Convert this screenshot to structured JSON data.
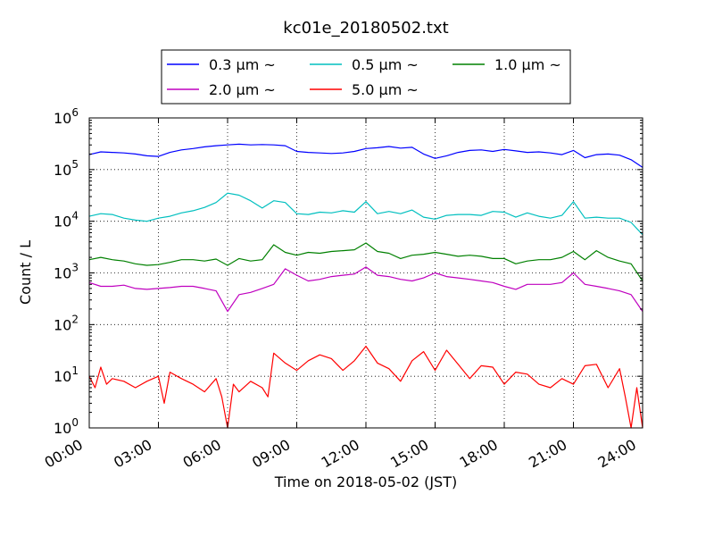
{
  "chart_data": {
    "type": "line",
    "title": "kc01e_20180502.txt",
    "xlabel": "Time on 2018-05-02 (JST)",
    "ylabel": "Count / L",
    "x_unit": "hours",
    "xlim": [
      0,
      24
    ],
    "ylim": [
      1,
      1000000
    ],
    "yscale": "log",
    "grid": true,
    "legend_position": "top-center",
    "x_ticks": [
      {
        "value": 0,
        "label": "00:00"
      },
      {
        "value": 3,
        "label": "03:00"
      },
      {
        "value": 6,
        "label": "06:00"
      },
      {
        "value": 9,
        "label": "09:00"
      },
      {
        "value": 12,
        "label": "12:00"
      },
      {
        "value": 15,
        "label": "15:00"
      },
      {
        "value": 18,
        "label": "18:00"
      },
      {
        "value": 21,
        "label": "21:00"
      },
      {
        "value": 24,
        "label": "24:00"
      }
    ],
    "y_ticks": [
      {
        "value": 1,
        "base": "10",
        "exp": "0"
      },
      {
        "value": 10,
        "base": "10",
        "exp": "1"
      },
      {
        "value": 100,
        "base": "10",
        "exp": "2"
      },
      {
        "value": 1000,
        "base": "10",
        "exp": "3"
      },
      {
        "value": 10000,
        "base": "10",
        "exp": "4"
      },
      {
        "value": 100000,
        "base": "10",
        "exp": "5"
      },
      {
        "value": 1000000,
        "base": "10",
        "exp": "6"
      }
    ],
    "series": [
      {
        "name": "0.3 μm ~",
        "color": "#0000ff",
        "x": [
          0,
          0.5,
          1,
          1.5,
          2,
          2.5,
          3,
          3.5,
          4,
          4.5,
          5,
          5.5,
          6,
          6.5,
          7,
          7.5,
          8,
          8.5,
          9,
          9.5,
          10,
          10.5,
          11,
          11.5,
          12,
          12.5,
          13,
          13.5,
          14,
          14.5,
          15,
          15.5,
          16,
          16.5,
          17,
          17.5,
          18,
          18.5,
          19,
          19.5,
          20,
          20.5,
          21,
          21.5,
          22,
          22.5,
          23,
          23.5,
          24
        ],
        "y": [
          195000,
          220000,
          215000,
          210000,
          200000,
          185000,
          180000,
          215000,
          240000,
          255000,
          275000,
          290000,
          300000,
          310000,
          300000,
          305000,
          300000,
          290000,
          225000,
          215000,
          210000,
          205000,
          210000,
          225000,
          255000,
          265000,
          280000,
          260000,
          270000,
          200000,
          165000,
          185000,
          215000,
          235000,
          240000,
          225000,
          245000,
          230000,
          215000,
          220000,
          210000,
          195000,
          235000,
          170000,
          195000,
          200000,
          190000,
          155000,
          110000
        ]
      },
      {
        "name": "0.5 μm ~",
        "color": "#00bfbf",
        "x": [
          0,
          0.5,
          1,
          1.5,
          2,
          2.5,
          3,
          3.5,
          4,
          4.5,
          5,
          5.5,
          6,
          6.5,
          7,
          7.5,
          8,
          8.5,
          9,
          9.5,
          10,
          10.5,
          11,
          11.5,
          12,
          12.5,
          13,
          13.5,
          14,
          14.5,
          15,
          15.5,
          16,
          16.5,
          17,
          17.5,
          18,
          18.5,
          19,
          19.5,
          20,
          20.5,
          21,
          21.5,
          22,
          22.5,
          23,
          23.5,
          24
        ],
        "y": [
          12500,
          14000,
          13500,
          11500,
          10500,
          10000,
          11500,
          12500,
          14500,
          16000,
          18500,
          23000,
          35000,
          32000,
          25000,
          18000,
          25000,
          23000,
          14000,
          13500,
          15000,
          14500,
          16000,
          15000,
          24000,
          14000,
          15500,
          14000,
          16500,
          12000,
          11000,
          13000,
          13500,
          13500,
          13000,
          15500,
          15000,
          12000,
          14500,
          12500,
          11500,
          13000,
          24000,
          11500,
          12000,
          11500,
          11500,
          9500,
          5500
        ]
      },
      {
        "name": "1.0 μm ~",
        "color": "#008000",
        "x": [
          0,
          0.5,
          1,
          1.5,
          2,
          2.5,
          3,
          3.5,
          4,
          4.5,
          5,
          5.5,
          6,
          6.5,
          7,
          7.5,
          8,
          8.5,
          9,
          9.5,
          10,
          10.5,
          11,
          11.5,
          12,
          12.5,
          13,
          13.5,
          14,
          14.5,
          15,
          15.5,
          16,
          16.5,
          17,
          17.5,
          18,
          18.5,
          19,
          19.5,
          20,
          20.5,
          21,
          21.5,
          22,
          22.5,
          23,
          23.5,
          24
        ],
        "y": [
          1800,
          2000,
          1800,
          1700,
          1500,
          1400,
          1450,
          1600,
          1800,
          1800,
          1700,
          1850,
          1400,
          1900,
          1700,
          1800,
          3500,
          2500,
          2200,
          2500,
          2400,
          2600,
          2700,
          2800,
          3800,
          2600,
          2400,
          1900,
          2200,
          2300,
          2500,
          2300,
          2100,
          2200,
          2100,
          1900,
          1900,
          1500,
          1700,
          1800,
          1800,
          2000,
          2600,
          1800,
          2700,
          2000,
          1700,
          1500,
          700
        ]
      },
      {
        "name": "2.0 μm ~",
        "color": "#bf00bf",
        "x": [
          0,
          0.5,
          1,
          1.5,
          2,
          2.5,
          3,
          3.5,
          4,
          4.5,
          5,
          5.5,
          6,
          6.5,
          7,
          7.5,
          8,
          8.5,
          9,
          9.5,
          10,
          10.5,
          11,
          11.5,
          12,
          12.5,
          13,
          13.5,
          14,
          14.5,
          15,
          15.5,
          16,
          16.5,
          17,
          17.5,
          18,
          18.5,
          19,
          19.5,
          20,
          20.5,
          21,
          21.5,
          22,
          22.5,
          23,
          23.5,
          24
        ],
        "y": [
          650,
          550,
          550,
          580,
          500,
          480,
          500,
          520,
          550,
          550,
          500,
          450,
          180,
          380,
          420,
          500,
          600,
          1200,
          900,
          700,
          750,
          850,
          900,
          950,
          1300,
          900,
          850,
          750,
          700,
          800,
          1000,
          850,
          800,
          750,
          700,
          650,
          550,
          480,
          600,
          600,
          600,
          650,
          1000,
          600,
          550,
          500,
          450,
          380,
          180
        ]
      },
      {
        "name": "5.0 μm ~",
        "color": "#ff0000",
        "x": [
          0,
          0.25,
          0.5,
          0.75,
          1,
          1.5,
          2,
          2.5,
          3,
          3.25,
          3.5,
          4,
          4.5,
          5,
          5.5,
          5.75,
          6,
          6.25,
          6.5,
          7,
          7.5,
          7.75,
          8,
          8.5,
          9,
          9.5,
          10,
          10.5,
          11,
          11.5,
          12,
          12.5,
          13,
          13.5,
          14,
          14.5,
          15,
          15.5,
          16,
          16.5,
          17,
          17.5,
          18,
          18.5,
          19,
          19.5,
          20,
          20.5,
          21,
          21.5,
          22,
          22.5,
          23,
          23.25,
          23.5,
          23.75,
          24
        ],
        "y": [
          10,
          6,
          15,
          7,
          9,
          8,
          6,
          8,
          10,
          3,
          12,
          9,
          7,
          5,
          9,
          4,
          1,
          7,
          5,
          8,
          6,
          4,
          28,
          18,
          13,
          20,
          26,
          22,
          13,
          20,
          38,
          18,
          14,
          8,
          20,
          30,
          13,
          32,
          17,
          9,
          16,
          15,
          7,
          12,
          11,
          7,
          6,
          9,
          7,
          16,
          17,
          6,
          14,
          4,
          1,
          6,
          1
        ]
      }
    ]
  }
}
